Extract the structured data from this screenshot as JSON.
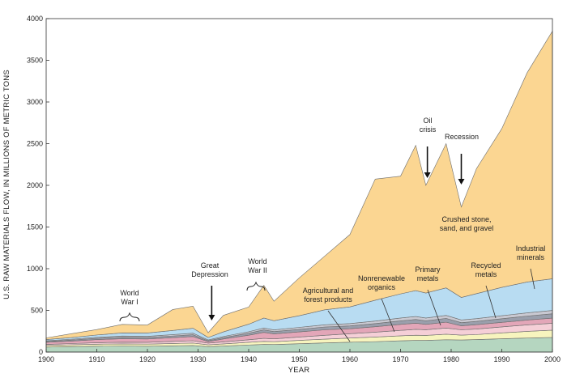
{
  "chart_data": {
    "type": "area",
    "stacked": true,
    "title": "",
    "xlabel": "YEAR",
    "ylabel": "U.S. RAW MATERIALS FLOW, IN MILLIONS OF METRIC TONS",
    "xlim": [
      1900,
      2000
    ],
    "ylim": [
      0,
      4000
    ],
    "xticks": [
      1900,
      1910,
      1920,
      1930,
      1940,
      1950,
      1960,
      1970,
      1980,
      1990,
      2000
    ],
    "yticks": [
      0,
      500,
      1000,
      1500,
      2000,
      2500,
      3000,
      3500,
      4000
    ],
    "x": [
      1900,
      1905,
      1910,
      1915,
      1920,
      1925,
      1929,
      1932,
      1935,
      1940,
      1943,
      1945,
      1950,
      1955,
      1960,
      1965,
      1970,
      1973,
      1975,
      1979,
      1982,
      1985,
      1990,
      1995,
      2000
    ],
    "series": [
      {
        "name": "Agricultural and forest products",
        "color": "#b5d6c0",
        "values": [
          60,
          65,
          70,
          72,
          70,
          75,
          78,
          65,
          72,
          85,
          92,
          90,
          100,
          110,
          118,
          125,
          135,
          140,
          140,
          148,
          145,
          150,
          160,
          168,
          175
        ]
      },
      {
        "name": "",
        "color": "#f7f4be",
        "values": [
          20,
          22,
          24,
          26,
          25,
          28,
          30,
          22,
          26,
          32,
          36,
          34,
          40,
          45,
          50,
          55,
          60,
          62,
          60,
          66,
          58,
          60,
          70,
          80,
          88
        ]
      },
      {
        "name": "Nonrenewable organics",
        "color": "#f5cfd7",
        "values": [
          12,
          15,
          18,
          20,
          22,
          25,
          28,
          20,
          24,
          30,
          36,
          34,
          40,
          46,
          52,
          58,
          65,
          70,
          68,
          74,
          64,
          66,
          72,
          78,
          82
        ]
      },
      {
        "name": "Primary metals",
        "color": "#e3a6b8",
        "values": [
          25,
          30,
          38,
          42,
          40,
          45,
          50,
          18,
          35,
          55,
          72,
          60,
          62,
          66,
          60,
          66,
          72,
          74,
          64,
          70,
          48,
          52,
          54,
          58,
          62
        ]
      },
      {
        "name": "Recycled metals",
        "color": "#9a9fac",
        "values": [
          10,
          12,
          15,
          18,
          18,
          20,
          22,
          10,
          16,
          24,
          30,
          28,
          30,
          34,
          34,
          38,
          42,
          45,
          42,
          46,
          38,
          40,
          44,
          48,
          52
        ]
      },
      {
        "name": "",
        "color": "#c9c9d2",
        "values": [
          8,
          10,
          12,
          14,
          14,
          16,
          18,
          10,
          14,
          18,
          22,
          20,
          24,
          26,
          28,
          30,
          34,
          36,
          34,
          36,
          32,
          33,
          36,
          38,
          40
        ]
      },
      {
        "name": "Industrial minerals",
        "color": "#b8dcf2",
        "values": [
          15,
          20,
          28,
          38,
          40,
          50,
          60,
          30,
          55,
          90,
          120,
          110,
          140,
          180,
          200,
          250,
          290,
          310,
          300,
          330,
          270,
          300,
          340,
          370,
          380
        ]
      },
      {
        "name": "Crushed stone, sand, and gravel",
        "color": "#fbd692",
        "values": [
          20,
          46,
          65,
          102,
          96,
          251,
          264,
          57,
          198,
          206,
          392,
          234,
          454,
          643,
          868,
          1453,
          1412,
          1743,
          1292,
          1730,
          1085,
          1499,
          1904,
          2510,
          2971
        ]
      }
    ],
    "annotations": [
      {
        "text": "World War I",
        "lines": [
          "World",
          "War I"
        ],
        "x": 1917
      },
      {
        "text": "Great Depression",
        "lines": [
          "Great",
          "Depression"
        ],
        "x": 1932
      },
      {
        "text": "World War II",
        "lines": [
          "World",
          "War II"
        ],
        "x": 1942
      },
      {
        "text": "Oil crisis",
        "lines": [
          "Oil",
          "crisis"
        ],
        "x": 1975
      },
      {
        "text": "Recession",
        "lines": [
          "Recession"
        ],
        "x": 1982
      },
      {
        "text": "Crushed stone, sand, and gravel",
        "lines": [
          "Crushed stone,",
          "sand, and gravel"
        ]
      },
      {
        "text": "Industrial minerals",
        "lines": [
          "Industrial",
          "minerals"
        ]
      },
      {
        "text": "Recycled metals",
        "lines": [
          "Recycled",
          "metals"
        ]
      },
      {
        "text": "Primary metals",
        "lines": [
          "Primary",
          "metals"
        ]
      },
      {
        "text": "Nonrenewable organics",
        "lines": [
          "Nonrenewable",
          "organics"
        ]
      },
      {
        "text": "Agricultural and forest products",
        "lines": [
          "Agricultural and",
          "forest products"
        ]
      }
    ]
  }
}
